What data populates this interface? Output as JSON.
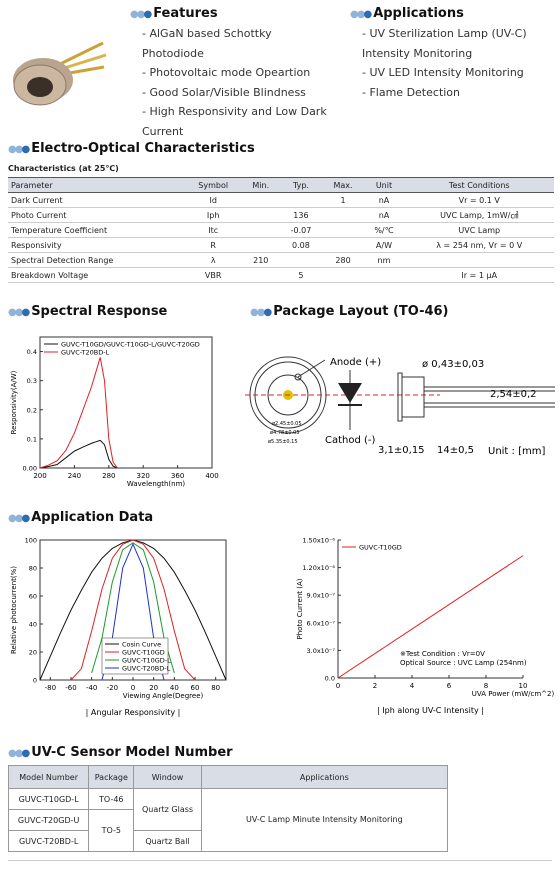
{
  "features": {
    "title": "Features",
    "items": [
      "AlGaN based Schottky Photodiode",
      "Photovoltaic mode Opeartion",
      "Good Solar/Visible Blindness",
      "High Responsivity and Low Dark Current"
    ]
  },
  "applications": {
    "title": "Applications",
    "items": [
      "UV Sterilization Lamp (UV-C) Intensity Monitoring",
      "UV LED Intensity Monitoring",
      "Flame Detection"
    ]
  },
  "electro_optical": {
    "title": "Electro-Optical Characteristics",
    "caption": "Characteristics (at 25℃)",
    "header": [
      "Parameter",
      "Symbol",
      "Min.",
      "Typ.",
      "Max.",
      "Unit",
      "Test Conditions"
    ],
    "rows": [
      [
        "Dark Current",
        "Id",
        null,
        null,
        "1",
        "nA",
        "Vr = 0.1 V"
      ],
      [
        "Photo Current",
        "Iph",
        null,
        "136",
        null,
        "nA",
        "UVC Lamp, 1mW/㎠"
      ],
      [
        "Temperature Coefficient",
        "Itc",
        null,
        "-0.07",
        null,
        "%/℃",
        "UVC Lamp"
      ],
      [
        "Responsivity",
        "R",
        null,
        "0.08",
        null,
        "A/W",
        "λ = 254 nm, Vr = 0 V"
      ],
      [
        "Spectral Detection Range",
        "λ",
        "210",
        null,
        "280",
        "nm",
        null
      ],
      [
        "Breakdown Voltage",
        "VBR",
        null,
        "5",
        null,
        null,
        "Ir = 1 μA"
      ]
    ]
  },
  "spectral_title": "Spectral Response",
  "package_layout": {
    "title": "Package Layout (TO-46)",
    "anode": "Anode (+)",
    "cathode": "Cathod (-)",
    "pin_dia": "ø 0,43±0,03",
    "pitch": "2,54±0,2",
    "cap_len": "3,1±0,15",
    "lead_len": "14±0,5",
    "unit": "Unit : [mm]",
    "dia_window": "ø2.45±0.05",
    "dia_cap": "ø4.78±0.05",
    "dia_flange": "ø5.35±0.15"
  },
  "application_title": "Application Data",
  "chart_data": [
    {
      "type": "line",
      "xlabel": "Wavelength(nm)",
      "ylabel": "Responsivity(A/W)",
      "xlim": [
        200,
        400
      ],
      "ylim": [
        0,
        0.45
      ],
      "xticks": [
        200,
        240,
        280,
        320,
        360,
        400
      ],
      "yticks": [
        {
          "value": 0,
          "label": "0.00"
        },
        0.1,
        0.2,
        0.3,
        0.4
      ],
      "legend": "upper left",
      "x": [
        200,
        210,
        220,
        230,
        240,
        250,
        260,
        265,
        270,
        275,
        280,
        285,
        290
      ],
      "series": [
        {
          "name": "GUVC-T10GD/GUVC-T10GD-L/GUVC-T20GD",
          "color": "#111111",
          "values": [
            0,
            0.005,
            0.012,
            0.035,
            0.058,
            0.072,
            0.085,
            0.09,
            0.095,
            0.08,
            0.03,
            0.006,
            0
          ]
        },
        {
          "name": "GUVC-T20BD-L",
          "color": "#e02020",
          "values": [
            0,
            0.01,
            0.025,
            0.06,
            0.12,
            0.2,
            0.28,
            0.33,
            0.38,
            0.3,
            0.1,
            0.02,
            0
          ]
        }
      ]
    },
    {
      "type": "line",
      "caption": "| Angular Responsivity |",
      "xlabel": "Viewing Angle(Degree)",
      "ylabel": "Relative photocurrent(%)",
      "xlim": [
        -90,
        90
      ],
      "ylim": [
        0,
        100
      ],
      "xticks": [
        -80,
        -60,
        -40,
        -20,
        0,
        20,
        40,
        60,
        80
      ],
      "yticks": [
        0,
        20,
        40,
        60,
        80,
        100
      ],
      "legend": "lower center",
      "x": [
        -90,
        -80,
        -70,
        -60,
        -50,
        -40,
        -30,
        -20,
        -10,
        0,
        10,
        20,
        30,
        40,
        50,
        60,
        70,
        80,
        90
      ],
      "series": [
        {
          "name": "Cosin Curve",
          "color": "#111111",
          "values": [
            0,
            17,
            34,
            50,
            64,
            77,
            87,
            94,
            98,
            100,
            98,
            94,
            87,
            77,
            64,
            50,
            34,
            17,
            0
          ]
        },
        {
          "name": "GUVC-T10GD",
          "color": "#e02020",
          "values": [
            null,
            null,
            null,
            0,
            8,
            35,
            65,
            87,
            97,
            100,
            97,
            87,
            65,
            35,
            8,
            0,
            null,
            null,
            null
          ]
        },
        {
          "name": "GUVC-T10GD-L",
          "color": "#1a9a2a",
          "values": [
            null,
            null,
            null,
            null,
            null,
            5,
            30,
            70,
            93,
            98,
            93,
            70,
            30,
            5,
            null,
            null,
            null,
            null,
            null
          ]
        },
        {
          "name": "GUVC-T20BD-L",
          "color": "#2030d0",
          "values": [
            null,
            null,
            null,
            null,
            null,
            null,
            0,
            30,
            80,
            97,
            80,
            30,
            0,
            null,
            null,
            null,
            null,
            null,
            null
          ]
        }
      ]
    },
    {
      "type": "line",
      "caption": "| Iph along UV-C Intensity |",
      "xlabel": "UVA Power (mW/cm^2)",
      "ylabel": "Photo Current (A)",
      "xlim": [
        0,
        10
      ],
      "ylim": [
        0,
        1.5e-06
      ],
      "xticks": [
        0,
        2,
        4,
        6,
        8,
        10
      ],
      "yticks": [
        {
          "value": 0,
          "label": "0.0"
        },
        {
          "value": 3e-07,
          "label": "3.0x10⁻⁷"
        },
        {
          "value": 6e-07,
          "label": "6.0x10⁻⁷"
        },
        {
          "value": 9e-07,
          "label": "9.0x10⁻⁷"
        },
        {
          "value": 1.2e-06,
          "label": "1.20x10⁻⁶"
        },
        {
          "value": 1.5e-06,
          "label": "1.50x10⁻⁶"
        }
      ],
      "legend": "upper left",
      "annotations": [
        "※Test Condition : Vr=0V",
        "Optical Source : UVC Lamp (254nm)"
      ],
      "x": [
        0,
        10
      ],
      "series": [
        {
          "name": "GUVC-T10GD",
          "color": "#e02020",
          "values": [
            0,
            1.33e-06
          ]
        }
      ]
    }
  ],
  "model_table": {
    "title": "UV-C Sensor Model Number",
    "header": [
      "Model Number",
      "Package",
      "Window",
      "Applications"
    ],
    "models": [
      "GUVC-T10GD-L",
      "GUVC-T20GD-U",
      "GUVC-T20BD-L"
    ],
    "packages": [
      "TO-46",
      "TO-5"
    ],
    "windows": [
      "Quartz Glass",
      "Quartz Ball"
    ],
    "application": "UV-C Lamp Minute Intensity Monitoring"
  }
}
